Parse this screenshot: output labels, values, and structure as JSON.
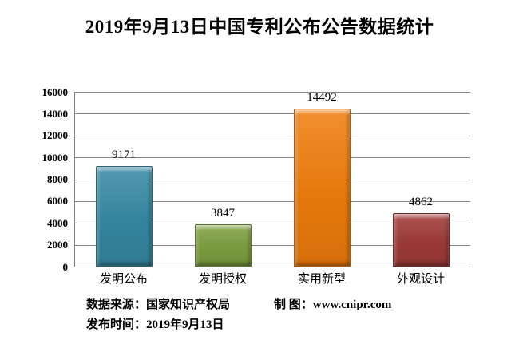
{
  "title": "2019年9月13日中国专利公布公告数据统计",
  "chart_data": {
    "type": "bar",
    "title": "2019年9月13日中国专利公布公告数据统计",
    "categories": [
      "发明公布",
      "发明授权",
      "实用新型",
      "外观设计"
    ],
    "values": [
      9171,
      3847,
      14492,
      4862
    ],
    "bar_colors": [
      "#3689A3",
      "#7FA040",
      "#EF7D0D",
      "#A03B38"
    ],
    "value_labels": [
      "9171",
      "3847",
      "14492",
      "4862"
    ],
    "xlabel": "",
    "ylabel": "",
    "ylim": [
      0,
      16000
    ],
    "ytick_step": 2000,
    "grid": true,
    "legend": "none"
  },
  "footer": {
    "source_label": "数据来源：国家知识产权局",
    "credit_label": "制 图：www.cnipr.com",
    "publish_label": "发布时间：2019年9月13日"
  },
  "colors": {
    "background": "#ffffff",
    "gridline": "#868686",
    "axis": "#7a7a7a",
    "text": "#000000"
  }
}
